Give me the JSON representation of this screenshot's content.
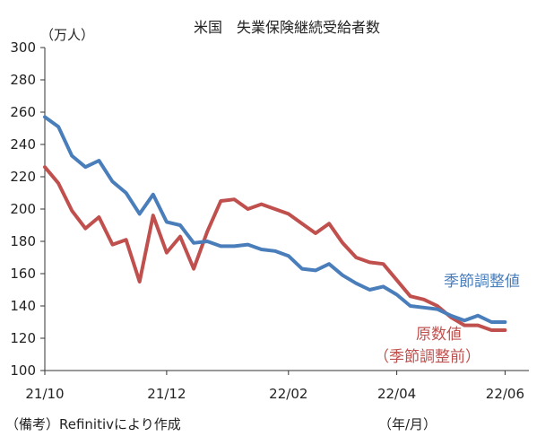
{
  "chart_data": {
    "type": "line",
    "title": "米国　失業保険継続受給者数",
    "ylabel": "（万人）",
    "xlabel": "（年/月）",
    "source_note": "（備考）Refinitivにより作成",
    "ylim": [
      100,
      300
    ],
    "yticks": [
      100,
      120,
      140,
      160,
      180,
      200,
      220,
      240,
      260,
      280,
      300
    ],
    "xtick_labels": [
      "21/10",
      "21/12",
      "22/02",
      "22/04",
      "22/06"
    ],
    "grid": false,
    "series": [
      {
        "name": "季節調整値",
        "color": "#4a7ebb",
        "values": [
          257,
          251,
          233,
          226,
          230,
          217,
          210,
          197,
          209,
          192,
          190,
          179,
          180,
          177,
          177,
          178,
          175,
          174,
          171,
          163,
          162,
          166,
          159,
          154,
          150,
          152,
          147,
          140,
          139,
          138,
          134,
          131,
          134,
          130,
          130
        ]
      },
      {
        "name": "原数値",
        "name_line2": "（季節調整前）",
        "color": "#c0504d",
        "values": [
          226,
          216,
          199,
          188,
          195,
          178,
          181,
          155,
          196,
          173,
          183,
          163,
          186,
          205,
          206,
          200,
          203,
          200,
          197,
          191,
          185,
          191,
          179,
          170,
          167,
          166,
          156,
          146,
          144,
          140,
          133,
          128,
          128,
          125,
          125
        ]
      }
    ]
  }
}
